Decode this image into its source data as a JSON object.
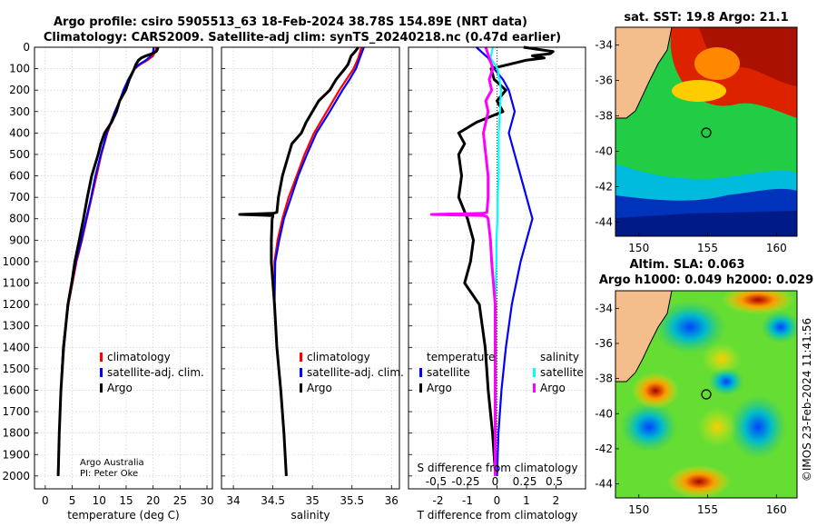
{
  "titles": {
    "line1": "Argo profile: csiro 5905513_63 18-Feb-2024 38.78S 154.89E (NRT data)",
    "line2": "Climatology: CARS2009. Satellite-adj clim: synTS_20240218.nc (0.47d earlier)"
  },
  "credit": {
    "line1": "Argo Australia",
    "line2": "PI: Peter Oke"
  },
  "timestamp": "©IMOS 23-Feb-2024 11:41:56",
  "colors": {
    "argo": "#000000",
    "climatology": "#ff0000",
    "satellite_adj": "#0000ff",
    "sat_temp": "#0000ff",
    "sat_sal": "#00ffff",
    "argo_sal": "#ff00ff"
  },
  "chart_data": [
    {
      "type": "line",
      "id": "temperature",
      "xlabel": "temperature (deg C)",
      "xlim": [
        -2,
        31
      ],
      "xticks": [
        0,
        5,
        10,
        15,
        20,
        25,
        30
      ],
      "ylim": [
        2060,
        0
      ],
      "yticks": [
        0,
        100,
        200,
        300,
        400,
        500,
        600,
        700,
        800,
        900,
        1000,
        1100,
        1200,
        1300,
        1400,
        1500,
        1600,
        1700,
        1800,
        1900,
        2000
      ],
      "legend": [
        "climatology",
        "satellite-adj. clim.",
        "Argo"
      ],
      "series": [
        {
          "name": "climatology",
          "color": "#ff0000",
          "depth": [
            0,
            20,
            40,
            60,
            80,
            100,
            150,
            200,
            250,
            300,
            400,
            500,
            600,
            700,
            800,
            900,
            1000,
            1200,
            1400,
            1600,
            1800,
            2000
          ],
          "values": [
            20.6,
            20.4,
            20.0,
            19.0,
            17.6,
            16.6,
            15.5,
            14.6,
            13.8,
            13.0,
            11.5,
            10.4,
            9.5,
            8.6,
            7.7,
            6.8,
            5.8,
            4.3,
            3.3,
            2.9,
            2.6,
            2.4
          ]
        },
        {
          "name": "satellite-adj. clim.",
          "color": "#0000ff",
          "depth": [
            0,
            20,
            40,
            60,
            80,
            100,
            150,
            200,
            250,
            300,
            400,
            500,
            600,
            700,
            800,
            900,
            1000,
            1200,
            1400,
            1600,
            1800,
            2000
          ],
          "values": [
            20.1,
            20.0,
            19.6,
            18.7,
            17.4,
            16.5,
            15.4,
            14.5,
            13.8,
            12.9,
            11.4,
            10.3,
            9.3,
            8.5,
            7.6,
            6.7,
            5.7,
            4.2,
            3.3,
            2.9,
            2.6,
            2.4
          ]
        },
        {
          "name": "Argo",
          "color": "#000000",
          "depth": [
            0,
            10,
            20,
            30,
            40,
            50,
            60,
            80,
            100,
            150,
            200,
            250,
            300,
            350,
            400,
            450,
            500,
            600,
            700,
            800,
            900,
            1000,
            1100,
            1200,
            1400,
            1600,
            1800,
            2000
          ],
          "values": [
            20.9,
            20.8,
            20.6,
            19.8,
            18.7,
            17.8,
            17.3,
            16.8,
            16.5,
            15.6,
            14.9,
            13.8,
            13.2,
            12.3,
            11.0,
            10.3,
            9.8,
            8.6,
            7.8,
            7.1,
            6.3,
            5.5,
            4.9,
            4.2,
            3.4,
            2.9,
            2.6,
            2.4
          ]
        }
      ]
    },
    {
      "type": "line",
      "id": "salinity",
      "xlabel": "salinity",
      "xlim": [
        33.85,
        36.1
      ],
      "xticks": [
        34,
        34.5,
        35,
        35.5,
        36
      ],
      "ylim": [
        2060,
        0
      ],
      "legend": [
        "climatology",
        "satellite-adj. clim.",
        "Argo"
      ],
      "series": [
        {
          "name": "climatology",
          "color": "#ff0000",
          "depth": [
            0,
            50,
            100,
            150,
            200,
            300,
            400,
            500,
            600,
            700,
            800,
            900,
            1000,
            1200,
            1400,
            1600,
            1800,
            2000
          ],
          "values": [
            35.62,
            35.58,
            35.52,
            35.43,
            35.34,
            35.18,
            35.02,
            34.9,
            34.8,
            34.7,
            34.62,
            34.56,
            34.52,
            34.52,
            34.55,
            34.6,
            34.64,
            34.67
          ]
        },
        {
          "name": "satellite-adj. clim.",
          "color": "#0000ff",
          "depth": [
            0,
            50,
            100,
            150,
            200,
            300,
            400,
            500,
            600,
            700,
            800,
            900,
            1000,
            1200,
            1400,
            1600,
            1800,
            2000
          ],
          "values": [
            35.65,
            35.6,
            35.55,
            35.47,
            35.38,
            35.22,
            35.05,
            34.93,
            34.82,
            34.73,
            34.64,
            34.58,
            34.53,
            34.52,
            34.55,
            34.6,
            34.64,
            34.67
          ]
        },
        {
          "name": "Argo",
          "color": "#000000",
          "depth": [
            0,
            20,
            40,
            60,
            80,
            100,
            150,
            200,
            250,
            300,
            350,
            400,
            450,
            500,
            600,
            700,
            770,
            775,
            780,
            785,
            790,
            800,
            900,
            1000,
            1100,
            1200,
            1400,
            1600,
            1800,
            2000
          ],
          "values": [
            35.58,
            35.54,
            35.49,
            35.47,
            35.45,
            35.41,
            35.3,
            35.22,
            35.08,
            35.0,
            34.92,
            34.86,
            34.74,
            34.7,
            34.62,
            34.57,
            34.55,
            34.5,
            34.08,
            34.5,
            34.5,
            34.49,
            34.48,
            34.48,
            34.5,
            34.52,
            34.55,
            34.6,
            34.64,
            34.67
          ]
        }
      ]
    },
    {
      "type": "line",
      "id": "difference",
      "xlabel": "T difference from climatology",
      "xlabel_top": "S difference from climatology",
      "xlim": [
        -3,
        3
      ],
      "xticks": [
        -2,
        -1,
        0,
        1,
        2
      ],
      "xtick_labels": [
        "-2",
        "-1",
        "0",
        "1",
        "2"
      ],
      "xticks_top": [
        -0.5,
        -0.25,
        0,
        0.25,
        0.5
      ],
      "xtick_labels_top": [
        "-0.5",
        "-0.25",
        "0",
        "0.25",
        "0.5"
      ],
      "ylim": [
        2060,
        0
      ],
      "legend_titles": [
        "temperature",
        "salinity"
      ],
      "legend_temp": [
        "satellite",
        "Argo"
      ],
      "legend_sal": [
        "satellite",
        "Argo"
      ],
      "series": [
        {
          "name": "temperature satellite",
          "color": "#0000ff",
          "depth": [
            0,
            50,
            100,
            150,
            200,
            300,
            400,
            500,
            600,
            700,
            800,
            900,
            1000,
            1200,
            1400,
            1600,
            1800,
            2000
          ],
          "values": [
            -0.7,
            -0.3,
            -0.1,
            0.2,
            0.4,
            0.6,
            0.4,
            0.6,
            0.8,
            1.0,
            1.2,
            1.0,
            0.8,
            0.5,
            0.3,
            0.15,
            0.05,
            0.0
          ]
        },
        {
          "name": "temperature Argo",
          "color": "#000000",
          "depth": [
            0,
            10,
            20,
            30,
            40,
            50,
            60,
            80,
            100,
            150,
            200,
            250,
            300,
            350,
            400,
            450,
            500,
            600,
            700,
            800,
            900,
            1000,
            1100,
            1200,
            1400,
            1600,
            1800,
            2000
          ],
          "values": [
            0.9,
            1.4,
            1.9,
            1.8,
            1.2,
            1.6,
            1.0,
            0.4,
            -0.2,
            -0.1,
            0.3,
            0.0,
            0.2,
            -0.7,
            -1.3,
            -1.1,
            -1.3,
            -1.2,
            -1.3,
            -1.0,
            -0.8,
            -0.9,
            -1.1,
            -0.6,
            -0.4,
            -0.3,
            -0.15,
            -0.05
          ]
        },
        {
          "name": "salinity satellite",
          "color": "#00ffff",
          "depth": [
            0,
            50,
            100,
            200,
            300,
            400,
            500,
            600,
            700,
            800,
            900,
            1000,
            1200,
            1400,
            1600,
            1800,
            2000
          ],
          "values": [
            -0.02,
            -0.04,
            0.02,
            0.05,
            0.04,
            0.03,
            0.03,
            0.03,
            0.02,
            0.02,
            0.01,
            0.01,
            0.0,
            0.0,
            0.0,
            0.0,
            0.0
          ]
        },
        {
          "name": "salinity Argo",
          "color": "#ff00ff",
          "depth": [
            0,
            50,
            100,
            150,
            200,
            250,
            300,
            400,
            500,
            600,
            700,
            770,
            775,
            780,
            785,
            790,
            800,
            900,
            1000,
            1200,
            1400,
            1600,
            1800,
            2000
          ],
          "values": [
            -0.08,
            -0.05,
            -0.02,
            -0.05,
            -0.03,
            -0.08,
            -0.06,
            -0.1,
            -0.08,
            -0.06,
            -0.06,
            -0.07,
            -0.1,
            -0.54,
            -0.1,
            -0.07,
            -0.06,
            -0.04,
            -0.03,
            0.0,
            0.0,
            0.0,
            0.0,
            0.0
          ]
        }
      ]
    },
    {
      "type": "heatmap",
      "id": "sst-map",
      "title": "sat. SST: 19.8 Argo: 21.1",
      "xlim": [
        148.3,
        161.5
      ],
      "ylim": [
        -44.8,
        -33.0
      ],
      "xticks": [
        150,
        155,
        160
      ],
      "yticks": [
        -34,
        -36,
        -38,
        -40,
        -42,
        -44
      ],
      "ytick_labels": [
        "-34",
        "-36",
        "-38",
        "-40",
        "-42",
        "-44"
      ],
      "float_position": {
        "lon": 154.89,
        "lat": -38.78
      }
    },
    {
      "type": "heatmap",
      "id": "sla-map",
      "title": "Altim. SLA: 0.063",
      "subtitle": "Argo h1000: 0.049 h2000: 0.029",
      "xlim": [
        148.3,
        161.5
      ],
      "ylim": [
        -44.8,
        -33.0
      ],
      "xticks": [
        150,
        155,
        160
      ],
      "yticks": [
        -34,
        -36,
        -38,
        -40,
        -42,
        -44
      ],
      "ytick_labels": [
        "-34",
        "-36",
        "-38",
        "-40",
        "-42",
        "-44"
      ],
      "float_position": {
        "lon": 154.89,
        "lat": -38.78
      }
    }
  ]
}
